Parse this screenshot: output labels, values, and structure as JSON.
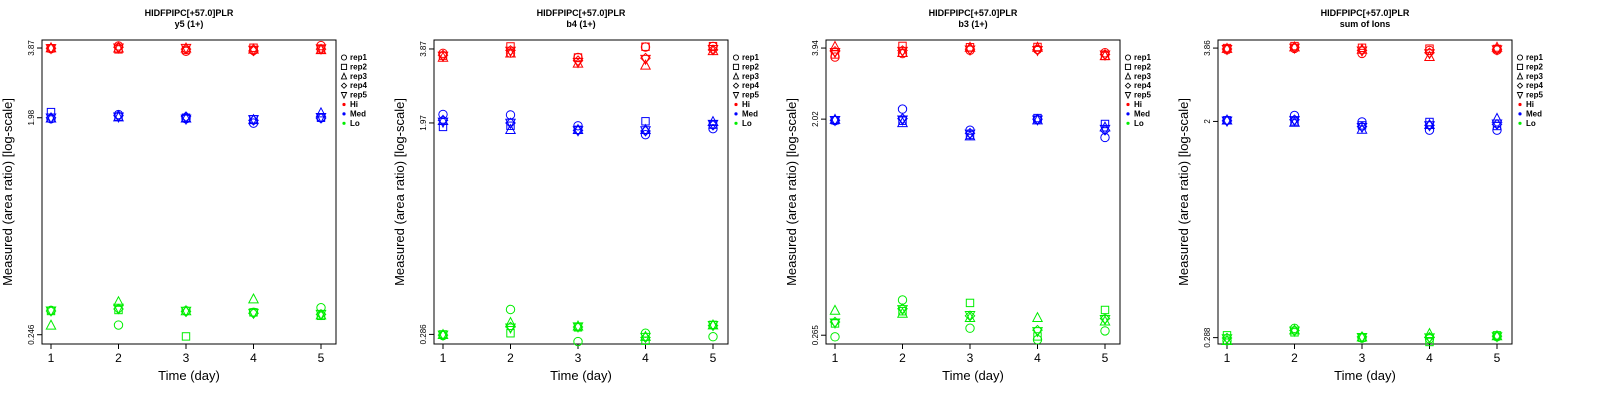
{
  "colors": {
    "Hi": "#ff0000",
    "Med": "#0000ff",
    "Lo": "#00ee00",
    "frame": "#000000"
  },
  "chart_data": [
    {
      "type": "scatter",
      "title": "HIDFPIPC[+57.0]PLR",
      "subtitle": "y5 (1+)",
      "xlabel": "Time (day)",
      "ylabel": "Measured (area ratio) [log-scale]",
      "x_ticks": [
        1,
        2,
        3,
        4,
        5
      ],
      "y_scale": "log",
      "y_ticks": [
        0.246,
        1.98,
        3.87
      ],
      "y_tick_labels": [
        "0.246",
        "1.98",
        "3.87"
      ],
      "ylim": [
        0.225,
        4.18
      ],
      "legend": {
        "position": "right",
        "entries": [
          "rep1",
          "rep2",
          "rep3",
          "rep4",
          "rep5",
          "Hi",
          "Med",
          "Lo"
        ]
      },
      "series": [
        {
          "name": "rep1",
          "level": "Hi",
          "values": [
            3.84,
            3.95,
            3.75,
            3.78,
            3.96
          ]
        },
        {
          "name": "rep2",
          "level": "Hi",
          "values": [
            3.86,
            3.82,
            3.8,
            3.88,
            3.82
          ]
        },
        {
          "name": "rep3",
          "level": "Hi",
          "values": [
            3.87,
            3.86,
            3.86,
            3.82,
            3.8
          ]
        },
        {
          "name": "rep4",
          "level": "Hi",
          "values": [
            3.86,
            3.9,
            3.83,
            3.76,
            3.83
          ]
        },
        {
          "name": "rep5",
          "level": "Hi",
          "values": [
            3.86,
            3.88,
            3.87,
            3.8,
            3.85
          ]
        },
        {
          "name": "rep1",
          "level": "Med",
          "values": [
            1.96,
            2.04,
            1.96,
            1.88,
            1.98
          ]
        },
        {
          "name": "rep2",
          "level": "Med",
          "values": [
            2.09,
            2.0,
            1.98,
            1.95,
            1.98
          ]
        },
        {
          "name": "rep3",
          "level": "Med",
          "values": [
            1.97,
            1.99,
            1.97,
            1.94,
            2.07
          ]
        },
        {
          "name": "rep4",
          "level": "Med",
          "values": [
            1.98,
            2.02,
            2.0,
            1.93,
            1.97
          ]
        },
        {
          "name": "rep5",
          "level": "Med",
          "values": [
            1.98,
            2.0,
            1.96,
            1.95,
            1.99
          ]
        },
        {
          "name": "rep1",
          "level": "Lo",
          "values": [
            0.311,
            0.27,
            0.31,
            0.305,
            0.319
          ]
        },
        {
          "name": "rep2",
          "level": "Lo",
          "values": [
            0.309,
            0.312,
            0.242,
            0.305,
            0.295
          ]
        },
        {
          "name": "rep3",
          "level": "Lo",
          "values": [
            0.269,
            0.337,
            0.309,
            0.346,
            0.297
          ]
        },
        {
          "name": "rep4",
          "level": "Lo",
          "values": [
            0.309,
            0.315,
            0.307,
            0.302,
            0.299
          ]
        },
        {
          "name": "rep5",
          "level": "Lo",
          "values": [
            0.31,
            0.318,
            0.309,
            0.303,
            0.3
          ]
        }
      ]
    },
    {
      "type": "scatter",
      "title": "HIDFPIPC[+57.0]PLR",
      "subtitle": "b4 (1+)",
      "xlabel": "Time (day)",
      "ylabel": "Measured (area ratio) [log-scale]",
      "x_ticks": [
        1,
        2,
        3,
        4,
        5
      ],
      "y_scale": "log",
      "y_ticks": [
        0.286,
        1.97,
        3.87
      ],
      "y_tick_labels": [
        "0.286",
        "1.97",
        "3.87"
      ],
      "ylim": [
        0.262,
        4.2
      ],
      "legend": {
        "position": "right",
        "entries": [
          "rep1",
          "rep2",
          "rep3",
          "rep4",
          "rep5",
          "Hi",
          "Med",
          "Lo"
        ]
      },
      "series": [
        {
          "name": "rep1",
          "level": "Hi",
          "values": [
            3.72,
            3.73,
            3.58,
            3.94,
            3.96
          ]
        },
        {
          "name": "rep2",
          "level": "Hi",
          "values": [
            3.64,
            3.96,
            3.58,
            3.95,
            3.97
          ]
        },
        {
          "name": "rep3",
          "level": "Hi",
          "values": [
            3.58,
            3.72,
            3.39,
            3.33,
            3.8
          ]
        },
        {
          "name": "rep4",
          "level": "Hi",
          "values": [
            3.66,
            3.82,
            3.48,
            3.56,
            3.84
          ]
        },
        {
          "name": "rep5",
          "level": "Hi",
          "values": [
            3.63,
            3.8,
            3.43,
            3.53,
            3.86
          ]
        },
        {
          "name": "rep1",
          "level": "Med",
          "values": [
            2.13,
            2.12,
            1.92,
            1.77,
            1.87
          ]
        },
        {
          "name": "rep2",
          "level": "Med",
          "values": [
            1.9,
            1.92,
            1.85,
            2.0,
            1.94
          ]
        },
        {
          "name": "rep3",
          "level": "Med",
          "values": [
            2.01,
            1.85,
            1.85,
            1.85,
            1.99
          ]
        },
        {
          "name": "rep4",
          "level": "Med",
          "values": [
            2.02,
            1.97,
            1.84,
            1.83,
            1.93
          ]
        },
        {
          "name": "rep5",
          "level": "Med",
          "values": [
            1.99,
            1.97,
            1.84,
            1.84,
            1.95
          ]
        },
        {
          "name": "rep1",
          "level": "Lo",
          "values": [
            0.283,
            0.359,
            0.268,
            0.289,
            0.28
          ]
        },
        {
          "name": "rep2",
          "level": "Lo",
          "values": [
            0.286,
            0.289,
            0.305,
            0.27,
            0.312
          ]
        },
        {
          "name": "rep3",
          "level": "Lo",
          "values": [
            0.285,
            0.318,
            0.308,
            0.28,
            0.311
          ]
        },
        {
          "name": "rep4",
          "level": "Lo",
          "values": [
            0.284,
            0.306,
            0.306,
            0.278,
            0.31
          ]
        },
        {
          "name": "rep5",
          "level": "Lo",
          "values": [
            0.285,
            0.304,
            0.307,
            0.279,
            0.311
          ]
        }
      ]
    },
    {
      "type": "scatter",
      "title": "HIDFPIPC[+57.0]PLR",
      "subtitle": "b3 (1+)",
      "xlabel": "Time (day)",
      "ylabel": "Measured (area ratio) [log-scale]",
      "x_ticks": [
        1,
        2,
        3,
        4,
        5
      ],
      "y_scale": "log",
      "y_ticks": [
        0.265,
        2.02,
        3.94
      ],
      "y_tick_labels": [
        "0.265",
        "2.02",
        "3.94"
      ],
      "ylim": [
        0.244,
        4.25
      ],
      "legend": {
        "position": "right",
        "entries": [
          "rep1",
          "rep2",
          "rep3",
          "rep4",
          "rep5",
          "Hi",
          "Med",
          "Lo"
        ]
      },
      "series": [
        {
          "name": "rep1",
          "level": "Hi",
          "values": [
            3.62,
            3.74,
            3.86,
            3.89,
            3.77
          ]
        },
        {
          "name": "rep2",
          "level": "Hi",
          "values": [
            3.71,
            4.02,
            3.97,
            3.98,
            3.66
          ]
        },
        {
          "name": "rep3",
          "level": "Hi",
          "values": [
            3.99,
            3.77,
            3.96,
            3.96,
            3.66
          ]
        },
        {
          "name": "rep4",
          "level": "Hi",
          "values": [
            3.82,
            3.85,
            3.9,
            3.88,
            3.71
          ]
        },
        {
          "name": "rep5",
          "level": "Hi",
          "values": [
            3.79,
            3.83,
            3.88,
            3.86,
            3.7
          ]
        },
        {
          "name": "rep1",
          "level": "Med",
          "values": [
            1.99,
            2.22,
            1.82,
            2.01,
            1.7
          ]
        },
        {
          "name": "rep2",
          "level": "Med",
          "values": [
            2.0,
            1.99,
            1.74,
            2.04,
            1.93
          ]
        },
        {
          "name": "rep3",
          "level": "Med",
          "values": [
            2.01,
            1.95,
            1.72,
            2.0,
            1.87
          ]
        },
        {
          "name": "rep4",
          "level": "Med",
          "values": [
            2.0,
            2.03,
            1.77,
            2.02,
            1.82
          ]
        },
        {
          "name": "rep5",
          "level": "Med",
          "values": [
            2.0,
            2.01,
            1.76,
            2.01,
            1.84
          ]
        },
        {
          "name": "rep1",
          "level": "Lo",
          "values": [
            0.261,
            0.369,
            0.283,
            0.254,
            0.276
          ]
        },
        {
          "name": "rep2",
          "level": "Lo",
          "values": [
            0.296,
            0.332,
            0.359,
            0.262,
            0.336
          ]
        },
        {
          "name": "rep3",
          "level": "Lo",
          "values": [
            0.334,
            0.325,
            0.312,
            0.312,
            0.302
          ]
        },
        {
          "name": "rep4",
          "level": "Lo",
          "values": [
            0.3,
            0.34,
            0.318,
            0.278,
            0.31
          ]
        },
        {
          "name": "rep5",
          "level": "Lo",
          "values": [
            0.298,
            0.338,
            0.32,
            0.275,
            0.308
          ]
        }
      ]
    },
    {
      "type": "scatter",
      "title": "HIDFPIPC[+57.0]PLR",
      "subtitle": "sum of Ions",
      "xlabel": "Time (day)",
      "ylabel": "Measured (area ratio) [log-scale]",
      "x_ticks": [
        1,
        2,
        3,
        4,
        5
      ],
      "y_scale": "log",
      "y_ticks": [
        0.288,
        2,
        3.86
      ],
      "y_tick_labels": [
        "0.288",
        "2",
        "3.86"
      ],
      "ylim": [
        0.272,
        4.15
      ],
      "legend": {
        "position": "right",
        "entries": [
          "rep1",
          "rep2",
          "rep3",
          "rep4",
          "rep5",
          "Hi",
          "Med",
          "Lo"
        ]
      },
      "series": [
        {
          "name": "rep1",
          "level": "Hi",
          "values": [
            3.8,
            3.85,
            3.68,
            3.78,
            3.79
          ]
        },
        {
          "name": "rep2",
          "level": "Hi",
          "values": [
            3.86,
            3.93,
            3.87,
            3.84,
            3.83
          ]
        },
        {
          "name": "rep3",
          "level": "Hi",
          "values": [
            3.84,
            3.89,
            3.81,
            3.57,
            3.88
          ]
        },
        {
          "name": "rep4",
          "level": "Hi",
          "values": [
            3.83,
            3.89,
            3.78,
            3.7,
            3.82
          ]
        },
        {
          "name": "rep5",
          "level": "Hi",
          "values": [
            3.82,
            3.87,
            3.77,
            3.68,
            3.81
          ]
        },
        {
          "name": "rep1",
          "level": "Med",
          "values": [
            2.02,
            2.11,
            1.99,
            1.85,
            1.85
          ]
        },
        {
          "name": "rep2",
          "level": "Med",
          "values": [
            2.02,
            2.0,
            1.93,
            1.99,
            1.92
          ]
        },
        {
          "name": "rep3",
          "level": "Med",
          "values": [
            2.02,
            1.98,
            1.86,
            1.94,
            2.05
          ]
        },
        {
          "name": "rep4",
          "level": "Med",
          "values": [
            2.01,
            2.03,
            1.91,
            1.93,
            1.95
          ]
        },
        {
          "name": "rep5",
          "level": "Med",
          "values": [
            2.01,
            2.02,
            1.9,
            1.93,
            1.96
          ]
        },
        {
          "name": "rep1",
          "level": "Lo",
          "values": [
            0.28,
            0.313,
            0.287,
            0.285,
            0.29
          ]
        },
        {
          "name": "rep2",
          "level": "Lo",
          "values": [
            0.294,
            0.302,
            0.288,
            0.277,
            0.294
          ]
        },
        {
          "name": "rep3",
          "level": "Lo",
          "values": [
            0.28,
            0.308,
            0.289,
            0.298,
            0.292
          ]
        },
        {
          "name": "rep4",
          "level": "Lo",
          "values": [
            0.287,
            0.307,
            0.29,
            0.289,
            0.292
          ]
        },
        {
          "name": "rep5",
          "level": "Lo",
          "values": [
            0.286,
            0.306,
            0.289,
            0.288,
            0.291
          ]
        }
      ]
    }
  ]
}
